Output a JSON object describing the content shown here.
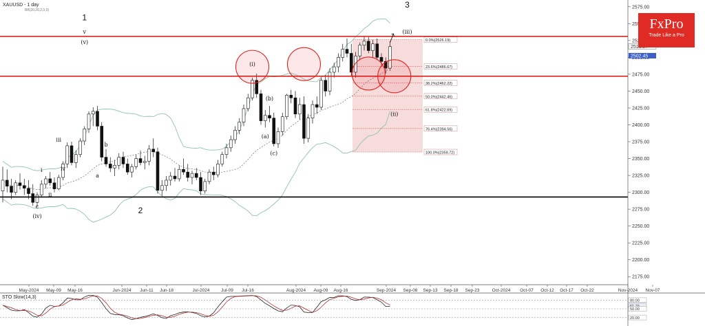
{
  "header": {
    "symbol_title": "XAUUSD - 1 day",
    "indicator_label": "BB(20,20,2,0,0)"
  },
  "logo": {
    "name": "FxPro",
    "tagline": "Trade Like a Pro"
  },
  "colors": {
    "resistance": "#e0201c",
    "support": "#000000",
    "bands": "#8fc4a8",
    "fib_fill": "#f6d6d6",
    "fib_line": "#e06a6a",
    "sto_k": "#222222",
    "sto_d": "#b83030"
  },
  "chart_data": {
    "type": "candlestick",
    "y_axis": {
      "ticks": [
        2575,
        2550,
        2525,
        2500,
        2475,
        2450,
        2425,
        2400,
        2375,
        2350,
        2325,
        2300,
        2275,
        2250,
        2225,
        2200,
        2175
      ],
      "min": 2163,
      "max": 2585
    },
    "x_axis": {
      "labels": [
        "May-2024",
        "May-09",
        "May-16",
        "Jun-2024",
        "Jun-11",
        "Jun-18",
        "Jul-2024",
        "Jul-09",
        "Jul-16",
        "Aug-2024",
        "Aug-09",
        "Aug-16",
        "Sep-2024",
        "Sep-08",
        "Sep-13",
        "Sep-18",
        "Sep-23",
        "Oct-2024",
        "Oct-07",
        "Oct-12",
        "Oct-17",
        "Oct-22",
        "Nov-2024",
        "Nov-07"
      ]
    },
    "price_tags": {
      "level": "2516.27",
      "last": "2502.45"
    },
    "horizontal_lines": [
      {
        "value": 2531,
        "style": "resistance"
      },
      {
        "value": 2472,
        "style": "resistance"
      },
      {
        "value": 2293,
        "style": "support"
      }
    ],
    "fibonacci": [
      {
        "label": "0.0%(2526.19)",
        "value": 2526.19
      },
      {
        "label": "23.6%(2486.67)",
        "value": 2486.67
      },
      {
        "label": "38.2%(2462.22)",
        "value": 2462.22
      },
      {
        "label": "50.0%(2442.46)",
        "value": 2442.46
      },
      {
        "label": "61.8%(2422.69)",
        "value": 2422.69
      },
      {
        "label": "76.4%(2394.56)",
        "value": 2394.56
      },
      {
        "label": "100.0%(2359.72)",
        "value": 2359.72
      }
    ],
    "wave_labels": [
      "1",
      "2",
      "3",
      "(v)",
      "v",
      "i",
      "ii",
      "iii",
      "iv",
      "(i)",
      "(ii)",
      "(iii)",
      "(iv)",
      "a",
      "b",
      "c",
      "(a)",
      "(b)",
      "(c)"
    ],
    "candles": [
      [
        2302,
        2338,
        2285,
        2318
      ],
      [
        2318,
        2334,
        2300,
        2309
      ],
      [
        2309,
        2320,
        2290,
        2300
      ],
      [
        2300,
        2318,
        2296,
        2314
      ],
      [
        2314,
        2328,
        2304,
        2310
      ],
      [
        2310,
        2320,
        2296,
        2306
      ],
      [
        2306,
        2318,
        2290,
        2298
      ],
      [
        2298,
        2312,
        2280,
        2285
      ],
      [
        2285,
        2300,
        2278,
        2296
      ],
      [
        2296,
        2318,
        2292,
        2312
      ],
      [
        2312,
        2324,
        2306,
        2320
      ],
      [
        2320,
        2330,
        2310,
        2314
      ],
      [
        2314,
        2322,
        2300,
        2305
      ],
      [
        2305,
        2326,
        2303,
        2322
      ],
      [
        2322,
        2346,
        2318,
        2342
      ],
      [
        2342,
        2374,
        2336,
        2369
      ],
      [
        2369,
        2375,
        2340,
        2344
      ],
      [
        2344,
        2362,
        2336,
        2356
      ],
      [
        2356,
        2380,
        2352,
        2376
      ],
      [
        2376,
        2398,
        2370,
        2394
      ],
      [
        2394,
        2420,
        2388,
        2416
      ],
      [
        2416,
        2426,
        2398,
        2420
      ],
      [
        2420,
        2428,
        2392,
        2398
      ],
      [
        2398,
        2404,
        2346,
        2352
      ],
      [
        2352,
        2364,
        2338,
        2342
      ],
      [
        2342,
        2352,
        2330,
        2336
      ],
      [
        2336,
        2348,
        2324,
        2340
      ],
      [
        2340,
        2358,
        2334,
        2352
      ],
      [
        2352,
        2360,
        2336,
        2342
      ],
      [
        2342,
        2350,
        2326,
        2330
      ],
      [
        2330,
        2342,
        2322,
        2338
      ],
      [
        2338,
        2356,
        2334,
        2350
      ],
      [
        2350,
        2362,
        2340,
        2344
      ],
      [
        2344,
        2354,
        2334,
        2346
      ],
      [
        2346,
        2370,
        2340,
        2364
      ],
      [
        2364,
        2380,
        2352,
        2360
      ],
      [
        2360,
        2366,
        2298,
        2303
      ],
      [
        2303,
        2318,
        2295,
        2310
      ],
      [
        2310,
        2324,
        2302,
        2318
      ],
      [
        2318,
        2330,
        2310,
        2324
      ],
      [
        2324,
        2336,
        2316,
        2320
      ],
      [
        2320,
        2340,
        2316,
        2334
      ],
      [
        2334,
        2350,
        2326,
        2330
      ],
      [
        2330,
        2342,
        2316,
        2322
      ],
      [
        2322,
        2332,
        2312,
        2328
      ],
      [
        2328,
        2336,
        2318,
        2322
      ],
      [
        2322,
        2330,
        2296,
        2302
      ],
      [
        2302,
        2320,
        2298,
        2316
      ],
      [
        2316,
        2334,
        2312,
        2330
      ],
      [
        2330,
        2338,
        2318,
        2326
      ],
      [
        2326,
        2348,
        2322,
        2342
      ],
      [
        2342,
        2360,
        2338,
        2356
      ],
      [
        2356,
        2372,
        2350,
        2366
      ],
      [
        2366,
        2384,
        2360,
        2378
      ],
      [
        2378,
        2398,
        2372,
        2392
      ],
      [
        2392,
        2410,
        2386,
        2404
      ],
      [
        2404,
        2430,
        2398,
        2424
      ],
      [
        2424,
        2446,
        2420,
        2440
      ],
      [
        2440,
        2470,
        2436,
        2466
      ],
      [
        2466,
        2476,
        2440,
        2446
      ],
      [
        2446,
        2452,
        2400,
        2406
      ],
      [
        2406,
        2422,
        2396,
        2414
      ],
      [
        2414,
        2428,
        2404,
        2410
      ],
      [
        2410,
        2418,
        2368,
        2372
      ],
      [
        2372,
        2396,
        2366,
        2390
      ],
      [
        2390,
        2418,
        2384,
        2412
      ],
      [
        2412,
        2446,
        2408,
        2444
      ],
      [
        2444,
        2452,
        2432,
        2440
      ],
      [
        2440,
        2450,
        2410,
        2416
      ],
      [
        2416,
        2440,
        2408,
        2430
      ],
      [
        2430,
        2442,
        2372,
        2380
      ],
      [
        2380,
        2416,
        2374,
        2410
      ],
      [
        2410,
        2436,
        2402,
        2430
      ],
      [
        2430,
        2442,
        2416,
        2426
      ],
      [
        2426,
        2470,
        2422,
        2466
      ],
      [
        2466,
        2474,
        2442,
        2450
      ],
      [
        2450,
        2484,
        2444,
        2478
      ],
      [
        2478,
        2492,
        2470,
        2486
      ],
      [
        2486,
        2506,
        2478,
        2500
      ],
      [
        2500,
        2520,
        2494,
        2512
      ],
      [
        2512,
        2528,
        2500,
        2506
      ],
      [
        2506,
        2520,
        2472,
        2478
      ],
      [
        2478,
        2508,
        2470,
        2502
      ],
      [
        2502,
        2522,
        2496,
        2518
      ],
      [
        2518,
        2532,
        2510,
        2524
      ],
      [
        2524,
        2530,
        2506,
        2510
      ],
      [
        2510,
        2526,
        2500,
        2520
      ],
      [
        2520,
        2528,
        2496,
        2500
      ],
      [
        2500,
        2506,
        2486,
        2494
      ],
      [
        2494,
        2500,
        2476,
        2484
      ],
      [
        2484,
        2524,
        2480,
        2516
      ]
    ],
    "sto_panel": {
      "title": "STO Slow(14,3)",
      "tags": [
        "80.00",
        "61.16",
        "50.00",
        "20.00"
      ]
    }
  }
}
